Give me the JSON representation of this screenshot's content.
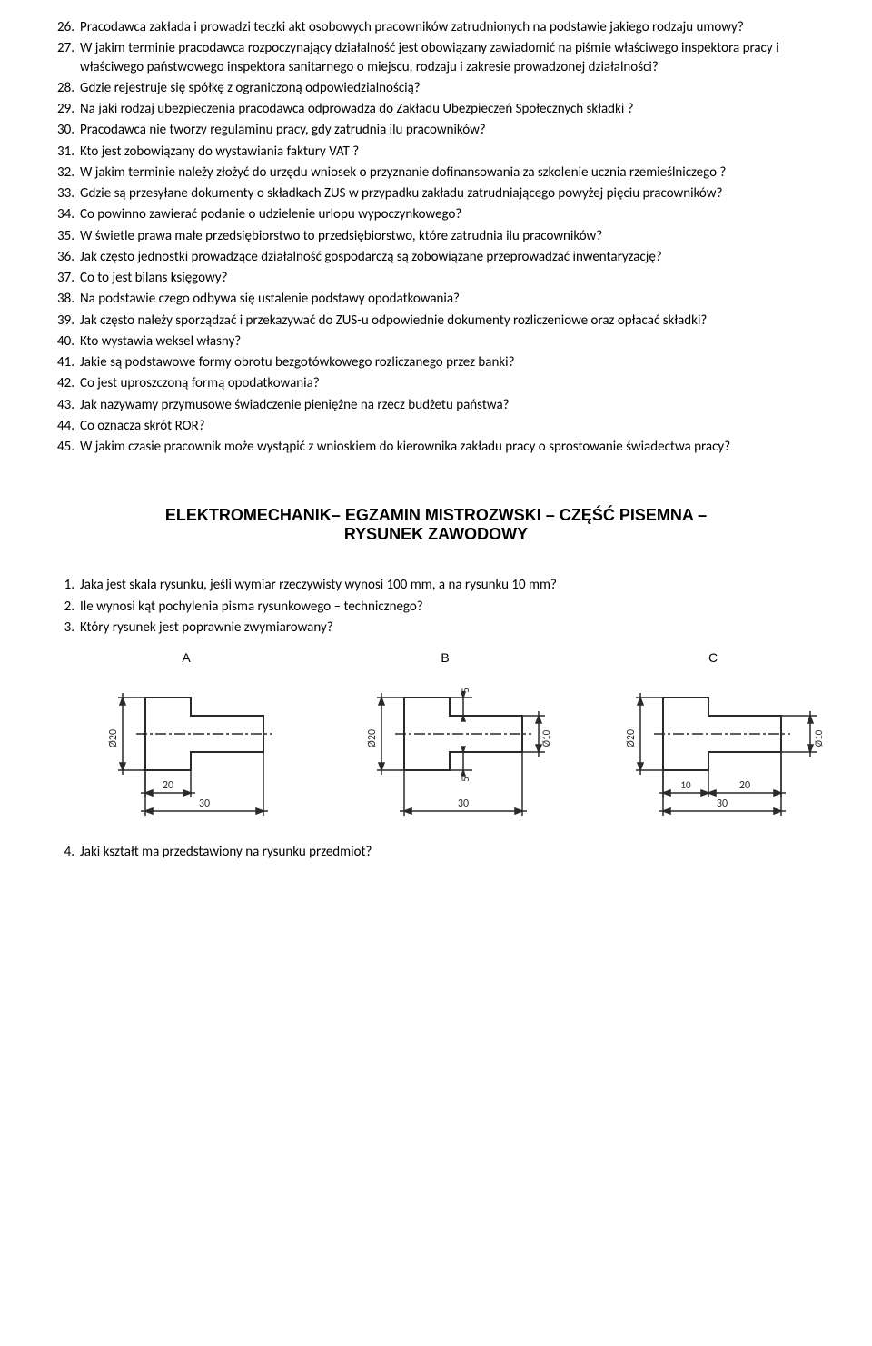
{
  "questions_part1": [
    {
      "num": "26.",
      "text": "Pracodawca zakłada i prowadzi teczki akt osobowych pracowników zatrudnionych na podstawie jakiego rodzaju umowy?"
    },
    {
      "num": "27.",
      "text": "W jakim terminie pracodawca rozpoczynający działalność jest obowiązany zawiadomić na piśmie właściwego inspektora pracy i właściwego państwowego inspektora sanitarnego  o miejscu, rodzaju i zakresie prowadzonej działalności?"
    },
    {
      "num": "28.",
      "text": "Gdzie rejestruje się spółkę z ograniczoną odpowiedzialnością?"
    },
    {
      "num": "29.",
      "text": "Na jaki rodzaj ubezpieczenia pracodawca odprowadza do Zakładu Ubezpieczeń Społecznych składki ?"
    },
    {
      "num": "30.",
      "text": "Pracodawca nie tworzy regulaminu pracy, gdy zatrudnia ilu pracowników?"
    },
    {
      "num": "31.",
      "text": "Kto jest zobowiązany do wystawiania faktury VAT ?"
    },
    {
      "num": "32.",
      "text": "W jakim terminie należy złożyć  do urzędu wniosek o przyznanie dofinansowania za szkolenie ucznia rzemieślniczego ?"
    },
    {
      "num": "33.",
      "text": "Gdzie są przesyłane dokumenty o składkach ZUS w przypadku zakładu zatrudniającego powyżej pięciu pracowników?"
    },
    {
      "num": "34.",
      "text": "Co powinno zawierać podanie o udzielenie urlopu wypoczynkowego?"
    },
    {
      "num": "35.",
      "text": "W świetle prawa małe przedsiębiorstwo to przedsiębiorstwo, które zatrudnia ilu pracowników?"
    },
    {
      "num": "36.",
      "text": "Jak często jednostki prowadzące działalność gospodarczą są zobowiązane przeprowadzać inwentaryzację?"
    },
    {
      "num": "37.",
      "text": "Co to jest bilans księgowy?"
    },
    {
      "num": "38.",
      "text": "Na podstawie czego odbywa się ustalenie podstawy opodatkowania?"
    },
    {
      "num": "39.",
      "text": "Jak często należy sporządzać i przekazywać  do ZUS-u odpowiednie dokumenty rozliczeniowe oraz opłacać składki?"
    },
    {
      "num": "40.",
      "text": "Kto wystawia weksel własny?"
    },
    {
      "num": "41.",
      "text": "Jakie są podstawowe formy obrotu bezgotówkowego rozliczanego przez banki?"
    },
    {
      "num": "42.",
      "text": "Co jest uproszczoną formą opodatkowania?"
    },
    {
      "num": "43.",
      "text": "Jak nazywamy przymusowe świadczenie pieniężne  na rzecz budżetu państwa?"
    },
    {
      "num": "44.",
      "text": "Co oznacza skrót ROR?"
    },
    {
      "num": "45.",
      "text": "W jakim czasie pracownik może wystąpić z wnioskiem do kierownika zakładu pracy o sprostowanie świadectwa pracy?"
    }
  ],
  "section_title_line1": "ELEKTROMECHANIK– EGZAMIN MISTROZWSKI – CZĘŚĆ PISEMNA –",
  "section_title_line2": "RYSUNEK ZAWODOWY",
  "questions_part2": [
    {
      "num": "1.",
      "text": "Jaka jest skala rysunku, jeśli wymiar rzeczywisty wynosi 100 mm, a na rysunku 10 mm?"
    },
    {
      "num": "2.",
      "text": "Ile wynosi kąt pochylenia pisma rysunkowego – technicznego?"
    },
    {
      "num": "3.",
      "text": "Który rysunek jest poprawnie zwymiarowany?"
    }
  ],
  "diagrams": {
    "strokeColor": "#2a2a2a",
    "textColor": "#2a2a2a",
    "labels": {
      "A": "A",
      "B": "B",
      "C": "C"
    },
    "dim_fi20": "Ø20",
    "dim_fi10": "Ø10",
    "dim_20": "20",
    "dim_30": "30",
    "dim_5": "5"
  },
  "question_after_diagrams": {
    "num": "4.",
    "text": "Jaki kształt ma przedstawiony na rysunku przedmiot?"
  }
}
